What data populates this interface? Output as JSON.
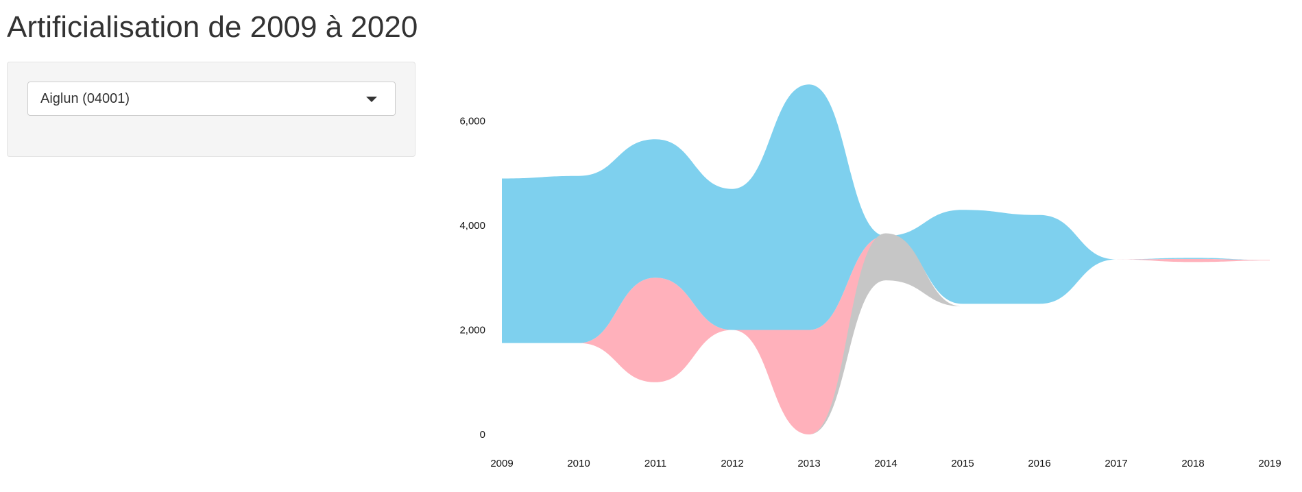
{
  "page": {
    "title": "Artificialisation de 2009 à 2020"
  },
  "filter": {
    "commune_select": {
      "selected": "Aiglun (04001)"
    }
  },
  "colors": {
    "series_blue": "#7ed0ee",
    "series_pink": "#ffb1bb",
    "series_gray": "#c6c6c6",
    "text": "#333333"
  },
  "chart_data": {
    "type": "area",
    "subtype": "streamgraph",
    "title": "",
    "xlabel": "",
    "ylabel": "",
    "x": [
      2009,
      2010,
      2011,
      2012,
      2013,
      2014,
      2015,
      2016,
      2017,
      2018,
      2019
    ],
    "x_tick_labels": [
      "2009",
      "2010",
      "2011",
      "2012",
      "2013",
      "2014",
      "2015",
      "2016",
      "2017",
      "2018",
      "2019"
    ],
    "y_ticks": [
      0,
      2000,
      4000,
      6000
    ],
    "y_tick_labels": [
      "0",
      "2,000",
      "4,000",
      "6,000"
    ],
    "ylim": [
      0,
      6900
    ],
    "baseline": [
      1750,
      1750,
      1000,
      2000,
      0,
      3800,
      2500,
      2500,
      3350,
      3300,
      3330
    ],
    "series": [
      {
        "color": "#c6c6c6",
        "values": [
          0,
          0,
          0,
          0,
          0,
          0,
          0,
          0,
          0,
          0,
          0
        ]
      },
      {
        "color": "#ffb1bb",
        "values": [
          0,
          0,
          2000,
          0,
          2000,
          0,
          0,
          0,
          0,
          60,
          10
        ]
      },
      {
        "color": "#c6c6c6",
        "values": [
          0,
          0,
          0,
          0,
          0,
          0,
          0,
          0,
          0,
          0,
          0
        ]
      },
      {
        "color": "#7ed0ee",
        "values": [
          3150,
          3200,
          2650,
          2700,
          4700,
          0,
          1800,
          1700,
          0,
          20,
          0
        ]
      }
    ],
    "extra_bands": [
      {
        "color": "#c6c6c6",
        "from_x": 2013,
        "lower": [
          0,
          2950,
          2450
        ],
        "upper": [
          0,
          3850,
          2450
        ],
        "x": [
          2013,
          2014,
          2015
        ]
      }
    ],
    "grid": false,
    "legend": "none"
  }
}
